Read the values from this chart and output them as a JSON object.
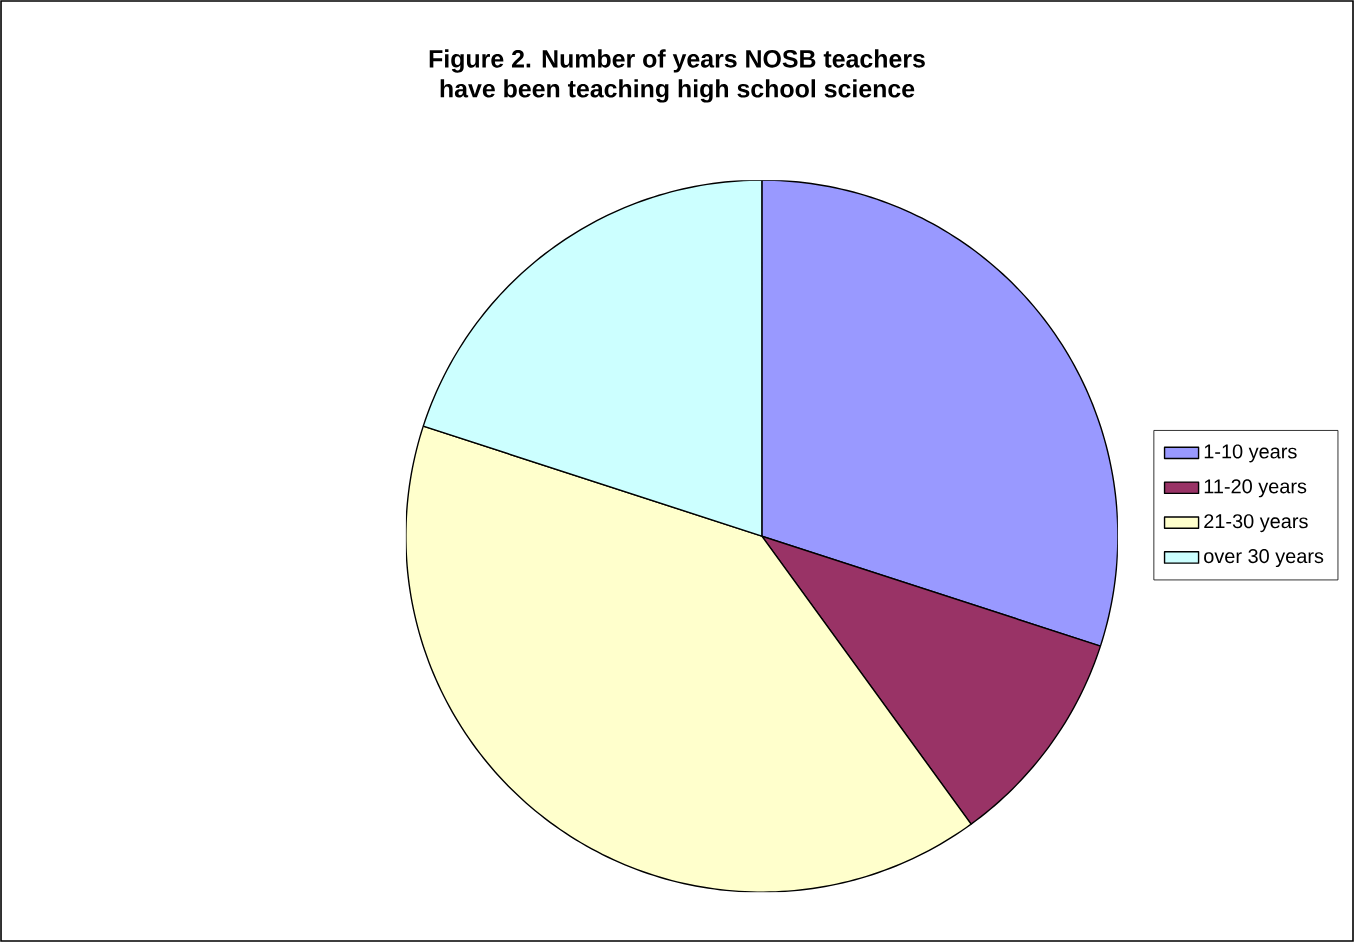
{
  "chart_data": {
    "type": "pie",
    "title": "Figure 2.  Number of years NOSB teachers\nhave been teaching high school science",
    "categories": [
      "1-10 years",
      "11-20 years",
      "21-30 years",
      "over 30 years"
    ],
    "values": [
      30,
      10,
      40,
      20
    ],
    "colors": [
      "#9999ff",
      "#993366",
      "#ffffcc",
      "#ccffff"
    ],
    "legend": "right"
  }
}
